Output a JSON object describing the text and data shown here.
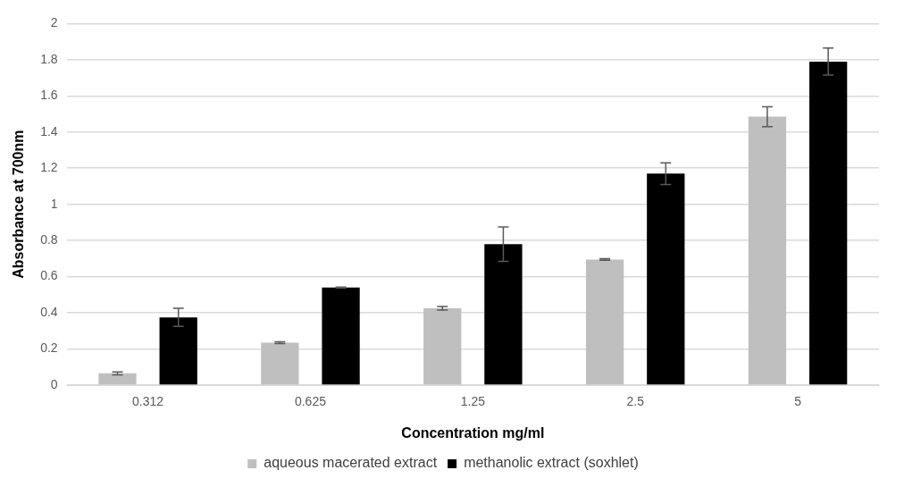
{
  "chart_data": {
    "type": "bar",
    "xlabel": "Concentration mg/ml",
    "ylabel": "Absorbance at 700nm",
    "categories": [
      "0.312",
      "0.625",
      "1.25",
      "2.5",
      "5"
    ],
    "series": [
      {
        "name": "aqueous macerated extract",
        "color": "#bfbfbf",
        "values": [
          0.065,
          0.235,
          0.425,
          0.695,
          1.485
        ],
        "errors": [
          0.008,
          0.005,
          0.01,
          0.004,
          0.055
        ]
      },
      {
        "name": "methanolic extract (soxhlet)",
        "color": "#000000",
        "values": [
          0.375,
          0.54,
          0.78,
          1.17,
          1.79
        ],
        "errors": [
          0.05,
          0.003,
          0.095,
          0.06,
          0.075
        ]
      }
    ],
    "ylim": [
      0,
      2
    ],
    "yticks": [
      0,
      0.2,
      0.4,
      0.6,
      0.8,
      1,
      1.2,
      1.4,
      1.6,
      1.8,
      2
    ],
    "grid": "y",
    "legend": "bottom"
  }
}
